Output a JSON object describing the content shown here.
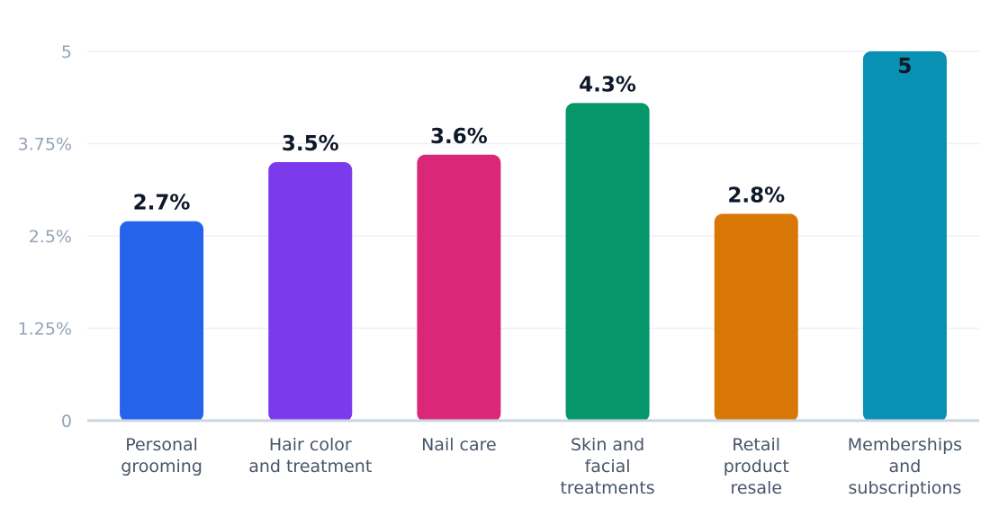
{
  "chart_data": {
    "type": "bar",
    "title": "",
    "xlabel": "",
    "ylabel": "",
    "ylim": [
      0,
      5
    ],
    "yticks": [
      {
        "value": 0,
        "label": "0"
      },
      {
        "value": 1.25,
        "label": "1.25%"
      },
      {
        "value": 2.5,
        "label": "2.5%"
      },
      {
        "value": 3.75,
        "label": "3.75%"
      },
      {
        "value": 5,
        "label": "5"
      }
    ],
    "grid": true,
    "legend": "none",
    "categories": [
      [
        "Personal",
        "grooming"
      ],
      [
        "Hair color",
        "and treatment"
      ],
      [
        "Nail care"
      ],
      [
        "Skin and",
        "facial",
        "treatments"
      ],
      [
        "Retail",
        "product",
        "resale"
      ],
      [
        "Memberships",
        "and",
        "subscriptions"
      ]
    ],
    "values": [
      2.7,
      3.5,
      3.6,
      4.3,
      2.8,
      5
    ],
    "data_labels": [
      "2.7%",
      "3.5%",
      "3.6%",
      "4.3%",
      "2.8%",
      "5"
    ],
    "colors": [
      "#2563eb",
      "#7c3aed",
      "#db2777",
      "#059669",
      "#d97706",
      "#0891b2"
    ]
  }
}
